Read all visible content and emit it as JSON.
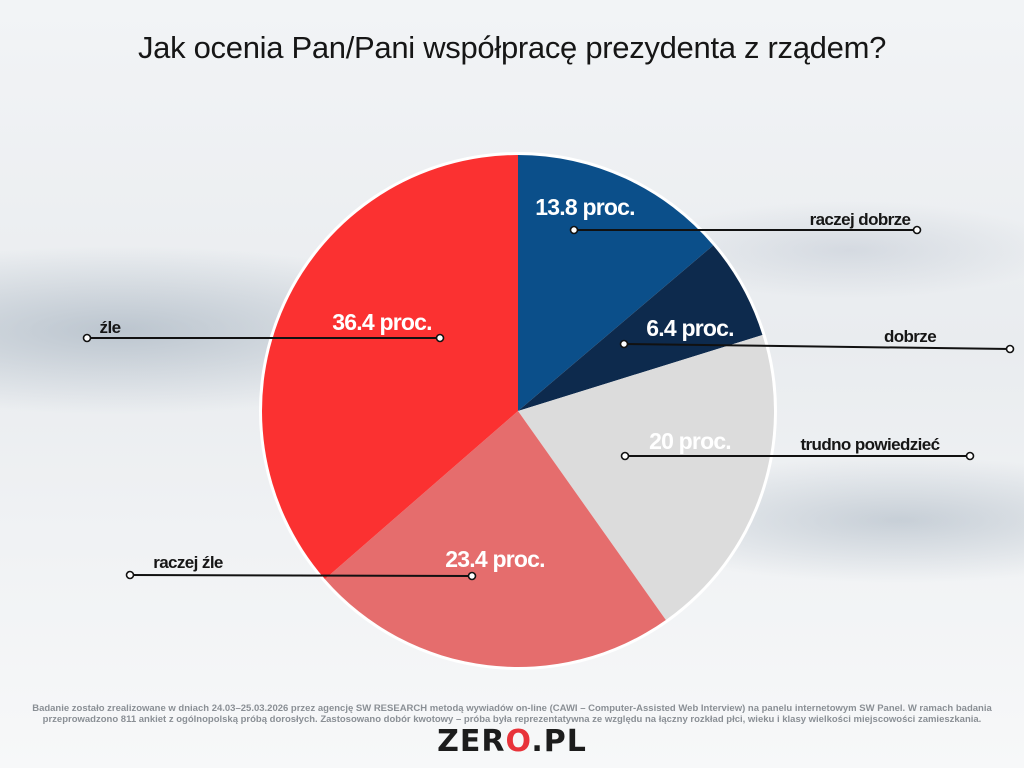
{
  "header": {
    "title": "Jak ocenia Pan/Pani współpracę prezydenta z rządem?"
  },
  "chart_data": {
    "type": "pie",
    "title": "Jak ocenia Pan/Pani współpracę prezydenta z rządem?",
    "start_angle_deg": 0,
    "direction": "clockwise",
    "slices": [
      {
        "label": "raczej dobrze",
        "value": 13.8,
        "value_label": "13.8 proc.",
        "color": "#0b4f8a"
      },
      {
        "label": "dobrze",
        "value": 6.4,
        "value_label": "6.4 proc.",
        "color": "#0d2a4d"
      },
      {
        "label": "trudno powiedzieć",
        "value": 20,
        "value_label": "20  proc.",
        "color": "#dcdcdc"
      },
      {
        "label": "raczej źle",
        "value": 23.4,
        "value_label": "23.4 proc.",
        "color": "#e56d6d"
      },
      {
        "label": "źle",
        "value": 36.4,
        "value_label": "36.4 proc.",
        "color": "#fb3131"
      }
    ]
  },
  "footer": {
    "note_line1": "Badanie zostało zrealizowane w dniach 24.03–25.03.2026 przez agencję SW RESEARCH metodą wywiadów on-line (CAWI – Computer-Assisted Web Interview) na panelu internetowym SW Panel. W ramach badania",
    "note_line2": "przeprowadzono 811 ankiet z ogólnopolską próbą dorosłych. Zastosowano dobór kwotowy – próba była reprezentatywna ze względu na łączny rozkład płci, wieku i klasy wielkości miejscowości zamieszkania.",
    "logo_left": "ZER",
    "logo_dot": "O",
    "logo_right": ".PL"
  }
}
